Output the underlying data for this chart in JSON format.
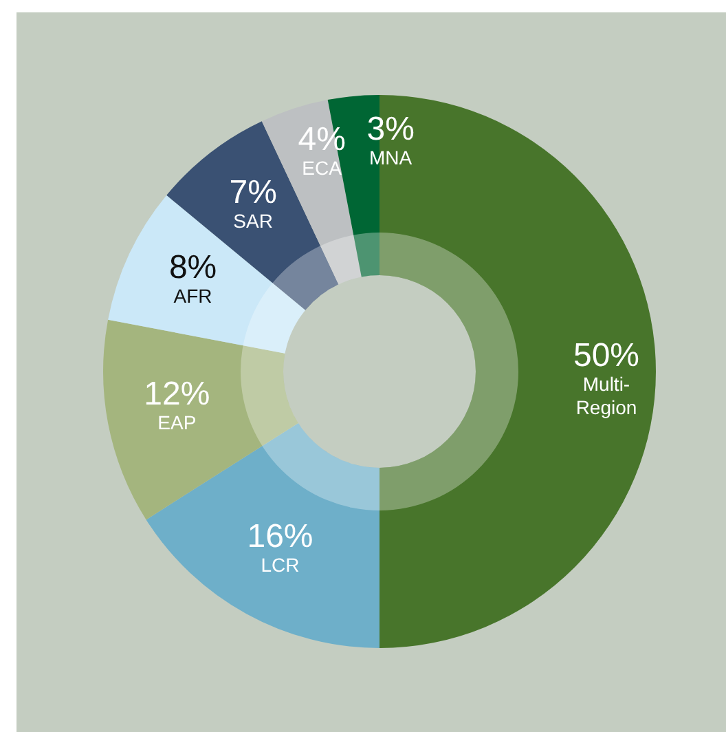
{
  "chart_data": {
    "type": "donut",
    "categories": [
      "Multi-Region",
      "LCR",
      "EAP",
      "AFR",
      "SAR",
      "ECA",
      "MNA"
    ],
    "values": [
      50,
      16,
      12,
      8,
      7,
      4,
      3
    ],
    "colors": [
      "#48752b",
      "#6eafc9",
      "#a4b57e",
      "#cbe8f8",
      "#3a5173",
      "#bdc0c2",
      "#006634"
    ],
    "value_labels": [
      "50%",
      "16%",
      "12%",
      "8%",
      "7%",
      "4%",
      "3%"
    ]
  }
}
